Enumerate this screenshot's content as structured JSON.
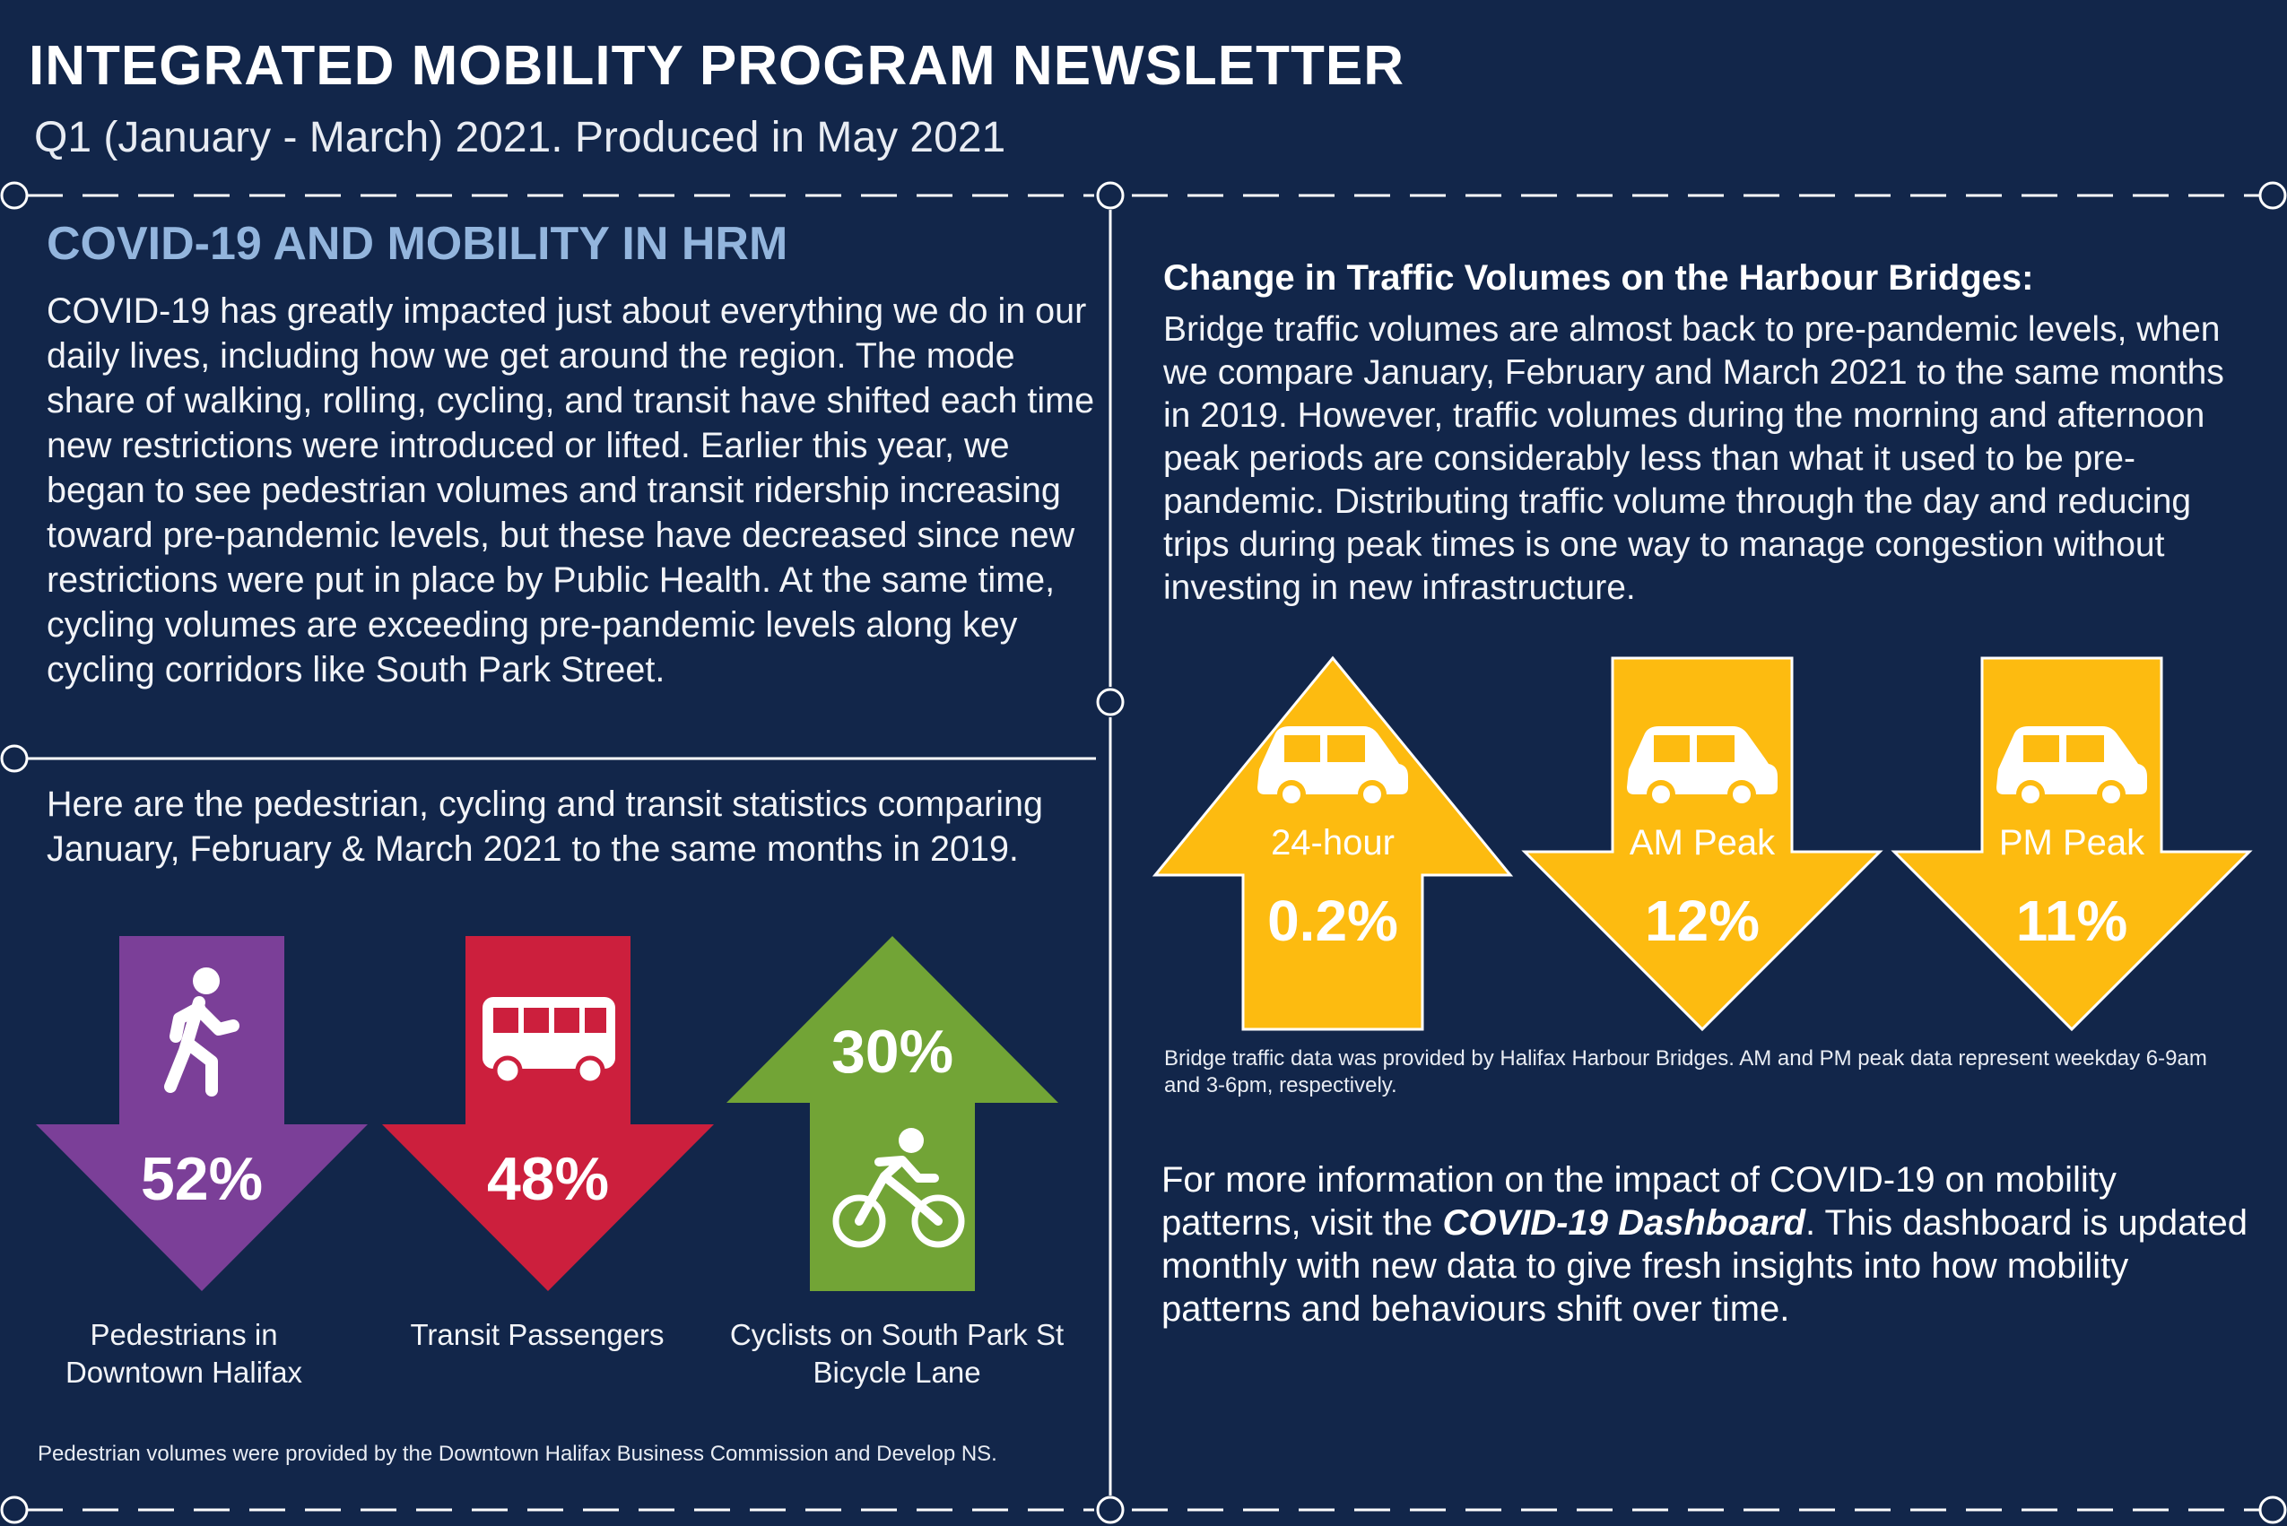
{
  "header": {
    "title": "INTEGRATED MOBILITY PROGRAM NEWSLETTER",
    "subtitle": "Q1 (January - March) 2021. Produced in May 2021"
  },
  "left": {
    "heading": "COVID-19 AND MOBILITY IN HRM",
    "paragraph": "COVID-19 has greatly impacted just about everything we do in our daily lives, including how we get around the region. The mode share of walking, rolling, cycling, and transit have shifted each time new restrictions were introduced or lifted. Earlier this year, we began to see pedestrian volumes and transit ridership increasing toward pre-pandemic levels, but these have decreased since new restrictions were put in place by Public Health. At the same time, cycling volumes are exceeding pre-pandemic levels along key cycling corridors like South Park Street.",
    "stats_intro": "Here are the pedestrian, cycling and transit statistics comparing January, February & March 2021 to the same months in 2019.",
    "stats": [
      {
        "value": "52%",
        "label": "Pedestrians in Downtown Halifax",
        "direction": "down",
        "color": "#7b3f98",
        "icon": "pedestrian-icon"
      },
      {
        "value": "48%",
        "label": "Transit Passengers",
        "direction": "down",
        "color": "#cc1f3d",
        "icon": "bus-icon"
      },
      {
        "value": "30%",
        "label": "Cyclists on South Park St Bicycle Lane",
        "direction": "up",
        "color": "#72a436",
        "icon": "cyclist-icon"
      }
    ],
    "footnote": "Pedestrian volumes were provided by the Downtown Halifax Business Commission and Develop NS."
  },
  "right": {
    "heading": "Change in Traffic Volumes on the Harbour Bridges:",
    "paragraph": "Bridge traffic volumes are almost back to pre-pandemic levels, when we compare January, February and March 2021 to the same months in 2019. However, traffic volumes during the morning and afternoon peak periods are considerably less than what it used to be pre-pandemic. Distributing traffic volume through the day and reducing trips during peak times is one way to manage congestion without investing in new infrastructure.",
    "bridges": [
      {
        "label": "24-hour",
        "value": "0.2%",
        "direction": "up",
        "icon": "car-icon"
      },
      {
        "label": "AM Peak",
        "value": "12%",
        "direction": "down",
        "icon": "car-icon"
      },
      {
        "label": "PM Peak",
        "value": "11%",
        "direction": "down",
        "icon": "car-icon"
      }
    ],
    "bridge_color": "#fdbb10",
    "footnote": "Bridge traffic data was provided by Halifax Harbour Bridges. AM and PM peak data represent weekday 6-9am and 3-6pm, respectively.",
    "more_before": "For more information on the impact of COVID-19 on mobility patterns, visit the ",
    "more_link": "COVID-19 Dashboard",
    "more_after": ". This dashboard is updated monthly with new data to give fresh insights into how mobility patterns and behaviours shift over time."
  }
}
